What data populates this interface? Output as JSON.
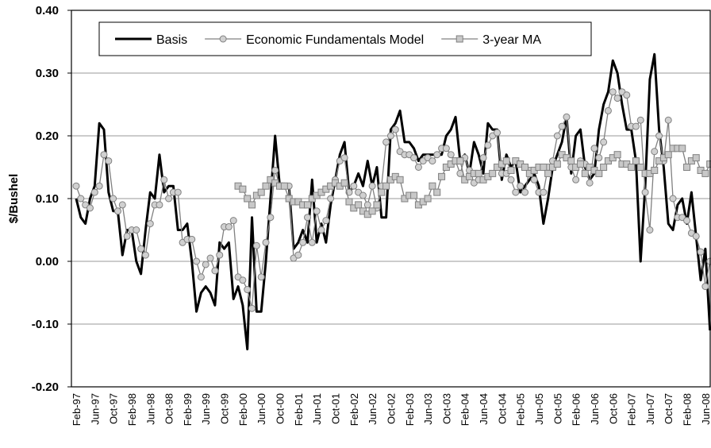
{
  "chart_data": {
    "type": "line",
    "y_label": "$/Bushel",
    "ylim": [
      -0.2,
      0.4
    ],
    "yticks": [
      {
        "value": -0.2,
        "label": "-0.20"
      },
      {
        "value": -0.1,
        "label": "-0.10"
      },
      {
        "value": 0,
        "label": "0.00"
      },
      {
        "value": 0.1,
        "label": "0.10"
      },
      {
        "value": 0.2,
        "label": "0.20"
      },
      {
        "value": 0.3,
        "label": "0.30"
      },
      {
        "value": 0.4,
        "label": "0.40"
      }
    ],
    "grid": true,
    "legend": "upper left",
    "categories": [
      "Feb-97",
      null,
      null,
      null,
      "Jun-97",
      null,
      null,
      null,
      "Oct-97",
      null,
      null,
      null,
      "Feb-98",
      null,
      null,
      null,
      "Jun-98",
      null,
      null,
      null,
      "Oct-98",
      null,
      null,
      null,
      "Feb-99",
      null,
      null,
      null,
      "Jun-99",
      null,
      null,
      null,
      "Oct-99",
      null,
      null,
      null,
      "Feb-00",
      null,
      null,
      null,
      "Jun-00",
      null,
      null,
      null,
      "Oct-00",
      null,
      null,
      null,
      "Feb-01",
      null,
      null,
      null,
      "Jun-01",
      null,
      null,
      null,
      "Oct-01",
      null,
      null,
      null,
      "Feb-02",
      null,
      null,
      null,
      "Jun-02",
      null,
      null,
      null,
      "Oct-02",
      null,
      null,
      null,
      "Feb-03",
      null,
      null,
      null,
      "Jun-03",
      null,
      null,
      null,
      "Oct-03",
      null,
      null,
      null,
      "Feb-04",
      null,
      null,
      null,
      "Jun-04",
      null,
      null,
      null,
      "Oct-04",
      null,
      null,
      null,
      "Feb-05",
      null,
      null,
      null,
      "Jun-05",
      null,
      null,
      null,
      "Oct-05",
      null,
      null,
      null,
      "Feb-06",
      null,
      null,
      null,
      "Jun-06",
      null,
      null,
      null,
      "Oct-06",
      null,
      null,
      null,
      "Feb-07",
      null,
      null,
      null,
      "Jun-07",
      null,
      null,
      null,
      "Oct-07",
      null,
      null,
      null,
      "Feb-08",
      null,
      null,
      null,
      "Jun-08",
      null
    ],
    "series": [
      {
        "name": "Basis",
        "color": "#000000",
        "marker": "none",
        "values": [
          0.1,
          0.07,
          0.06,
          0.1,
          0.12,
          0.22,
          0.21,
          0.11,
          0.08,
          0.08,
          0.01,
          0.05,
          0.05,
          0.0,
          -0.02,
          0.05,
          0.11,
          0.1,
          0.17,
          0.11,
          0.12,
          0.12,
          0.05,
          0.05,
          0.06,
          0.0,
          -0.08,
          -0.05,
          -0.04,
          -0.05,
          -0.07,
          0.03,
          0.02,
          0.03,
          -0.06,
          -0.04,
          -0.07,
          -0.14,
          0.07,
          -0.08,
          -0.08,
          0.0,
          0.1,
          0.2,
          0.12,
          0.12,
          0.12,
          0.02,
          0.03,
          0.05,
          0.03,
          0.13,
          0.03,
          0.06,
          0.03,
          0.09,
          0.13,
          0.17,
          0.19,
          0.11,
          0.12,
          0.14,
          0.12,
          0.16,
          0.12,
          0.15,
          0.07,
          0.07,
          0.21,
          0.22,
          0.24,
          0.19,
          0.19,
          0.18,
          0.16,
          0.17,
          0.17,
          0.17,
          0.17,
          0.17,
          0.2,
          0.21,
          0.23,
          0.16,
          0.17,
          0.14,
          0.19,
          0.17,
          0.14,
          0.22,
          0.21,
          0.21,
          0.13,
          0.17,
          0.15,
          0.16,
          0.11,
          0.12,
          0.13,
          0.14,
          0.12,
          0.06,
          0.1,
          0.15,
          0.17,
          0.19,
          0.23,
          0.14,
          0.2,
          0.21,
          0.15,
          0.13,
          0.14,
          0.21,
          0.25,
          0.27,
          0.32,
          0.3,
          0.25,
          0.21,
          0.21,
          0.16,
          0.0,
          0.12,
          0.29,
          0.33,
          0.21,
          0.15,
          0.06,
          0.05,
          0.09,
          0.1,
          0.06,
          0.11,
          0.04,
          -0.03,
          0.02,
          -0.11
        ]
      },
      {
        "name": "Economic Fundamentals Model",
        "color": "#808080",
        "marker": "circle",
        "values": [
          0.12,
          0.1,
          0.09,
          0.085,
          0.11,
          0.12,
          0.17,
          0.16,
          0.1,
          0.08,
          0.09,
          0.04,
          0.05,
          0.05,
          0.02,
          0.01,
          0.06,
          0.09,
          0.09,
          0.13,
          0.1,
          0.11,
          0.11,
          0.03,
          0.035,
          0.035,
          0.0,
          -0.025,
          -0.005,
          0.005,
          -0.015,
          0.01,
          0.055,
          0.055,
          0.065,
          -0.025,
          -0.03,
          -0.045,
          -0.075,
          0.025,
          -0.025,
          0.03,
          0.07,
          0.145,
          0.12,
          0.12,
          0.12,
          0.005,
          0.01,
          0.03,
          0.07,
          0.03,
          0.08,
          0.05,
          0.065,
          0.1,
          0.13,
          0.16,
          0.165,
          0.11,
          0.12,
          0.11,
          0.105,
          0.09,
          0.12,
          0.085,
          0.12,
          0.19,
          0.2,
          0.21,
          0.175,
          0.17,
          0.17,
          0.165,
          0.15,
          0.16,
          0.165,
          0.16,
          0.17,
          0.18,
          0.18,
          0.17,
          0.16,
          0.14,
          0.165,
          0.145,
          0.125,
          0.13,
          0.165,
          0.185,
          0.2,
          0.205,
          0.14,
          0.14,
          0.13,
          0.11,
          0.12,
          0.11,
          0.145,
          0.13,
          0.11,
          0.11,
          0.15,
          0.16,
          0.2,
          0.215,
          0.23,
          0.15,
          0.13,
          0.16,
          0.155,
          0.125,
          0.18,
          0.165,
          0.19,
          0.24,
          0.27,
          0.26,
          0.27,
          0.265,
          0.215,
          0.215,
          0.225,
          0.11,
          0.05,
          0.175,
          0.2,
          0.16,
          0.225,
          0.1,
          0.07,
          0.07,
          0.065,
          0.045,
          0.04,
          0.015,
          -0.04,
          0.0
        ]
      },
      {
        "name": "3-year MA",
        "color": "#808080",
        "marker": "square",
        "values": [
          null,
          null,
          null,
          null,
          null,
          null,
          null,
          null,
          null,
          null,
          null,
          null,
          null,
          null,
          null,
          null,
          null,
          null,
          null,
          null,
          null,
          null,
          null,
          null,
          null,
          null,
          null,
          null,
          null,
          null,
          null,
          null,
          null,
          null,
          null,
          0.12,
          0.115,
          0.1,
          0.09,
          0.105,
          0.11,
          0.12,
          0.13,
          0.125,
          0.12,
          0.12,
          0.1,
          0.095,
          0.095,
          0.09,
          0.09,
          0.1,
          0.105,
          0.11,
          0.115,
          0.12,
          0.125,
          0.12,
          0.125,
          0.095,
          0.085,
          0.09,
          0.08,
          0.075,
          0.08,
          0.09,
          0.11,
          0.12,
          0.13,
          0.135,
          0.13,
          0.1,
          0.105,
          0.105,
          0.09,
          0.095,
          0.1,
          0.12,
          0.11,
          0.135,
          0.15,
          0.155,
          0.16,
          0.16,
          0.13,
          0.135,
          0.14,
          0.14,
          0.13,
          0.135,
          0.14,
          0.15,
          0.155,
          0.16,
          0.145,
          0.16,
          0.155,
          0.15,
          0.14,
          0.145,
          0.15,
          0.15,
          0.14,
          0.15,
          0.155,
          0.17,
          0.165,
          0.16,
          0.15,
          0.155,
          0.14,
          0.15,
          0.145,
          0.14,
          0.15,
          0.16,
          0.165,
          0.17,
          0.155,
          0.155,
          0.15,
          0.16,
          0.15,
          0.14,
          0.14,
          0.145,
          0.16,
          0.165,
          0.17,
          0.18,
          0.18,
          0.18,
          0.15,
          0.16,
          0.165,
          0.145,
          0.14,
          0.155
        ]
      }
    ]
  }
}
